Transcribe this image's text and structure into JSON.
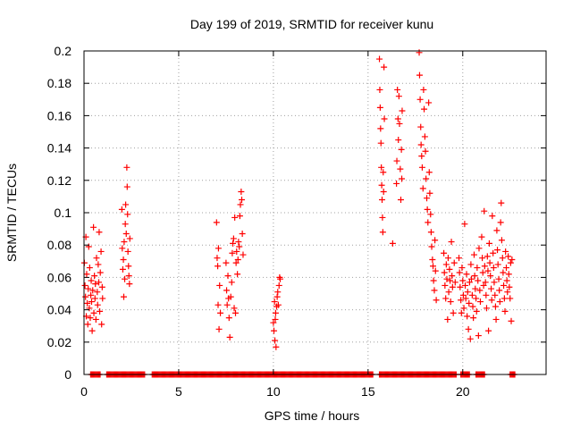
{
  "chart_data": {
    "type": "scatter",
    "title": "Day 199 of 2019, SRMTID for receiver kunu",
    "xlabel": "GPS time / hours",
    "ylabel": "SRMTID / TECUs",
    "xlim": [
      0,
      24.4
    ],
    "ylim": [
      0,
      0.2
    ],
    "xticks": [
      0,
      5,
      10,
      15,
      20
    ],
    "xtick_labels": [
      "0",
      "5",
      "10",
      "15",
      "20"
    ],
    "yticks": [
      0,
      0.02,
      0.04,
      0.06,
      0.08,
      0.1,
      0.12,
      0.14,
      0.16,
      0.18,
      0.2
    ],
    "ytick_labels": [
      "0",
      "0.02",
      "0.04",
      "0.06",
      "0.08",
      "0.1",
      "0.12",
      "0.14",
      "0.16",
      "0.18",
      "0.2"
    ],
    "grid": true,
    "marker": "+",
    "color": "#ff0000",
    "series": [
      {
        "name": "SRMTID",
        "points": [
          [
            0.02,
            0.069
          ],
          [
            0.05,
            0.055
          ],
          [
            0.08,
            0.048
          ],
          [
            0.1,
            0.085
          ],
          [
            0.12,
            0.036
          ],
          [
            0.14,
            0.062
          ],
          [
            0.17,
            0.044
          ],
          [
            0.2,
            0.031
          ],
          [
            0.22,
            0.053
          ],
          [
            0.25,
            0.079
          ],
          [
            0.28,
            0.041
          ],
          [
            0.3,
            0.066
          ],
          [
            0.33,
            0.035
          ],
          [
            0.36,
            0.049
          ],
          [
            0.38,
            0.058
          ],
          [
            0.4,
            0.045
          ],
          [
            0.43,
            0.027
          ],
          [
            0.46,
            0.052
          ],
          [
            0.5,
            0.091
          ],
          [
            0.52,
            0.038
          ],
          [
            0.55,
            0.061
          ],
          [
            0.58,
            0.047
          ],
          [
            0.6,
            0.056
          ],
          [
            0.63,
            0.034
          ],
          [
            0.66,
            0.072
          ],
          [
            0.7,
            0.051
          ],
          [
            0.72,
            0.043
          ],
          [
            0.75,
            0.068
          ],
          [
            0.78,
            0.057
          ],
          [
            0.8,
            0.088
          ],
          [
            0.83,
            0.039
          ],
          [
            0.86,
            0.063
          ],
          [
            0.9,
            0.076
          ],
          [
            0.93,
            0.031
          ],
          [
            0.96,
            0.054
          ],
          [
            0.98,
            0.047
          ],
          [
            2.0,
            0.102
          ],
          [
            2.02,
            0.078
          ],
          [
            2.05,
            0.065
          ],
          [
            2.08,
            0.071
          ],
          [
            2.1,
            0.048
          ],
          [
            2.12,
            0.082
          ],
          [
            2.15,
            0.059
          ],
          [
            2.18,
            0.093
          ],
          [
            2.2,
            0.105
          ],
          [
            2.23,
            0.087
          ],
          [
            2.26,
            0.128
          ],
          [
            2.28,
            0.116
          ],
          [
            2.3,
            0.099
          ],
          [
            2.32,
            0.076
          ],
          [
            2.35,
            0.067
          ],
          [
            2.37,
            0.061
          ],
          [
            2.4,
            0.056
          ],
          [
            2.42,
            0.084
          ],
          [
            7.0,
            0.094
          ],
          [
            7.03,
            0.072
          ],
          [
            7.06,
            0.067
          ],
          [
            7.08,
            0.043
          ],
          [
            7.1,
            0.078
          ],
          [
            7.13,
            0.028
          ],
          [
            7.16,
            0.055
          ],
          [
            7.2,
            0.038
          ],
          [
            7.5,
            0.069
          ],
          [
            7.53,
            0.052
          ],
          [
            7.56,
            0.043
          ],
          [
            7.6,
            0.061
          ],
          [
            7.63,
            0.047
          ],
          [
            7.66,
            0.035
          ],
          [
            7.7,
            0.023
          ],
          [
            7.75,
            0.048
          ],
          [
            7.8,
            0.057
          ],
          [
            7.83,
            0.075
          ],
          [
            7.86,
            0.081
          ],
          [
            7.9,
            0.084
          ],
          [
            7.93,
            0.041
          ],
          [
            7.96,
            0.097
          ],
          [
            8.0,
            0.038
          ],
          [
            8.03,
            0.069
          ],
          [
            8.06,
            0.076
          ],
          [
            8.1,
            0.062
          ],
          [
            8.13,
            0.071
          ],
          [
            8.16,
            0.082
          ],
          [
            8.2,
            0.079
          ],
          [
            8.23,
            0.098
          ],
          [
            8.26,
            0.105
          ],
          [
            8.3,
            0.113
          ],
          [
            8.33,
            0.108
          ],
          [
            8.36,
            0.087
          ],
          [
            8.4,
            0.074
          ],
          [
            10.0,
            0.032
          ],
          [
            10.03,
            0.027
          ],
          [
            10.06,
            0.045
          ],
          [
            10.08,
            0.021
          ],
          [
            10.1,
            0.034
          ],
          [
            10.12,
            0.038
          ],
          [
            10.14,
            0.017
          ],
          [
            10.17,
            0.042
          ],
          [
            10.2,
            0.048
          ],
          [
            10.23,
            0.051
          ],
          [
            10.26,
            0.043
          ],
          [
            10.3,
            0.055
          ],
          [
            10.33,
            0.06
          ],
          [
            10.36,
            0.059
          ],
          [
            15.6,
            0.195
          ],
          [
            15.62,
            0.176
          ],
          [
            15.64,
            0.165
          ],
          [
            15.66,
            0.152
          ],
          [
            15.68,
            0.143
          ],
          [
            15.7,
            0.128
          ],
          [
            15.72,
            0.117
          ],
          [
            15.74,
            0.108
          ],
          [
            15.76,
            0.097
          ],
          [
            15.78,
            0.088
          ],
          [
            15.8,
            0.125
          ],
          [
            15.82,
            0.113
          ],
          [
            15.84,
            0.19
          ],
          [
            15.86,
            0.158
          ],
          [
            16.3,
            0.081
          ],
          [
            16.5,
            0.118
          ],
          [
            16.52,
            0.132
          ],
          [
            16.55,
            0.176
          ],
          [
            16.58,
            0.158
          ],
          [
            16.6,
            0.145
          ],
          [
            16.63,
            0.172
          ],
          [
            16.66,
            0.155
          ],
          [
            16.7,
            0.127
          ],
          [
            16.73,
            0.108
          ],
          [
            16.76,
            0.139
          ],
          [
            16.78,
            0.121
          ],
          [
            16.8,
            0.163
          ],
          [
            17.7,
            0.199
          ],
          [
            17.72,
            0.185
          ],
          [
            17.75,
            0.17
          ],
          [
            17.78,
            0.153
          ],
          [
            17.8,
            0.142
          ],
          [
            17.83,
            0.135
          ],
          [
            17.86,
            0.128
          ],
          [
            17.9,
            0.115
          ],
          [
            17.93,
            0.176
          ],
          [
            17.96,
            0.164
          ],
          [
            18.0,
            0.147
          ],
          [
            18.03,
            0.138
          ],
          [
            18.06,
            0.121
          ],
          [
            18.1,
            0.109
          ],
          [
            18.13,
            0.102
          ],
          [
            18.16,
            0.094
          ],
          [
            18.2,
            0.168
          ],
          [
            18.23,
            0.125
          ],
          [
            18.26,
            0.112
          ],
          [
            18.3,
            0.099
          ],
          [
            18.33,
            0.088
          ],
          [
            18.36,
            0.079
          ],
          [
            18.4,
            0.071
          ],
          [
            18.43,
            0.067
          ],
          [
            18.46,
            0.058
          ],
          [
            18.5,
            0.052
          ],
          [
            18.53,
            0.083
          ],
          [
            18.56,
            0.064
          ],
          [
            18.6,
            0.046
          ],
          [
            19.0,
            0.075
          ],
          [
            19.03,
            0.063
          ],
          [
            19.06,
            0.055
          ],
          [
            19.1,
            0.047
          ],
          [
            19.13,
            0.068
          ],
          [
            19.16,
            0.059
          ],
          [
            19.2,
            0.034
          ],
          [
            19.23,
            0.072
          ],
          [
            19.26,
            0.051
          ],
          [
            19.3,
            0.065
          ],
          [
            19.33,
            0.058
          ],
          [
            19.36,
            0.045
          ],
          [
            19.4,
            0.082
          ],
          [
            19.43,
            0.061
          ],
          [
            19.46,
            0.054
          ],
          [
            19.5,
            0.038
          ],
          [
            19.55,
            0.069
          ],
          [
            19.6,
            0.057
          ],
          [
            19.8,
            0.072
          ],
          [
            19.83,
            0.063
          ],
          [
            19.86,
            0.054
          ],
          [
            19.9,
            0.046
          ],
          [
            19.93,
            0.038
          ],
          [
            19.96,
            0.066
          ],
          [
            20.0,
            0.058
          ],
          [
            20.03,
            0.049
          ],
          [
            20.06,
            0.041
          ],
          [
            20.1,
            0.093
          ],
          [
            20.13,
            0.055
          ],
          [
            20.16,
            0.047
          ],
          [
            20.2,
            0.062
          ],
          [
            20.23,
            0.036
          ],
          [
            20.26,
            0.051
          ],
          [
            20.3,
            0.028
          ],
          [
            20.33,
            0.044
          ],
          [
            20.36,
            0.057
          ],
          [
            20.4,
            0.022
          ],
          [
            20.43,
            0.068
          ],
          [
            20.46,
            0.059
          ],
          [
            20.5,
            0.049
          ],
          [
            20.53,
            0.042
          ],
          [
            20.56,
            0.035
          ],
          [
            20.6,
            0.074
          ],
          [
            20.63,
            0.061
          ],
          [
            20.66,
            0.053
          ],
          [
            20.7,
            0.047
          ],
          [
            20.73,
            0.039
          ],
          [
            20.76,
            0.066
          ],
          [
            20.8,
            0.058
          ],
          [
            20.83,
            0.024
          ],
          [
            20.86,
            0.078
          ],
          [
            20.9,
            0.052
          ],
          [
            20.93,
            0.045
          ],
          [
            21.0,
            0.085
          ],
          [
            21.03,
            0.072
          ],
          [
            21.06,
            0.063
          ],
          [
            21.1,
            0.055
          ],
          [
            21.13,
            0.101
          ],
          [
            21.16,
            0.067
          ],
          [
            21.2,
            0.057
          ],
          [
            21.23,
            0.049
          ],
          [
            21.26,
            0.041
          ],
          [
            21.3,
            0.073
          ],
          [
            21.33,
            0.064
          ],
          [
            21.36,
            0.027
          ],
          [
            21.4,
            0.081
          ],
          [
            21.43,
            0.069
          ],
          [
            21.46,
            0.061
          ],
          [
            21.5,
            0.053
          ],
          [
            21.53,
            0.046
          ],
          [
            21.56,
            0.098
          ],
          [
            21.6,
            0.075
          ],
          [
            21.63,
            0.066
          ],
          [
            21.66,
            0.057
          ],
          [
            21.7,
            0.049
          ],
          [
            21.73,
            0.042
          ],
          [
            21.76,
            0.034
          ],
          [
            21.8,
            0.089
          ],
          [
            21.83,
            0.077
          ],
          [
            21.86,
            0.068
          ],
          [
            21.9,
            0.059
          ],
          [
            21.93,
            0.052
          ],
          [
            21.96,
            0.045
          ],
          [
            22.0,
            0.094
          ],
          [
            22.03,
            0.106
          ],
          [
            22.06,
            0.083
          ],
          [
            22.1,
            0.072
          ],
          [
            22.13,
            0.063
          ],
          [
            22.16,
            0.055
          ],
          [
            22.2,
            0.047
          ],
          [
            22.23,
            0.039
          ],
          [
            22.26,
            0.076
          ],
          [
            22.3,
            0.066
          ],
          [
            22.33,
            0.058
          ],
          [
            22.36,
            0.051
          ],
          [
            22.4,
            0.073
          ],
          [
            22.43,
            0.062
          ],
          [
            22.46,
            0.054
          ],
          [
            22.5,
            0.047
          ],
          [
            22.53,
            0.069
          ],
          [
            22.56,
            0.033
          ],
          [
            22.6,
            0.071
          ]
        ]
      }
    ]
  }
}
